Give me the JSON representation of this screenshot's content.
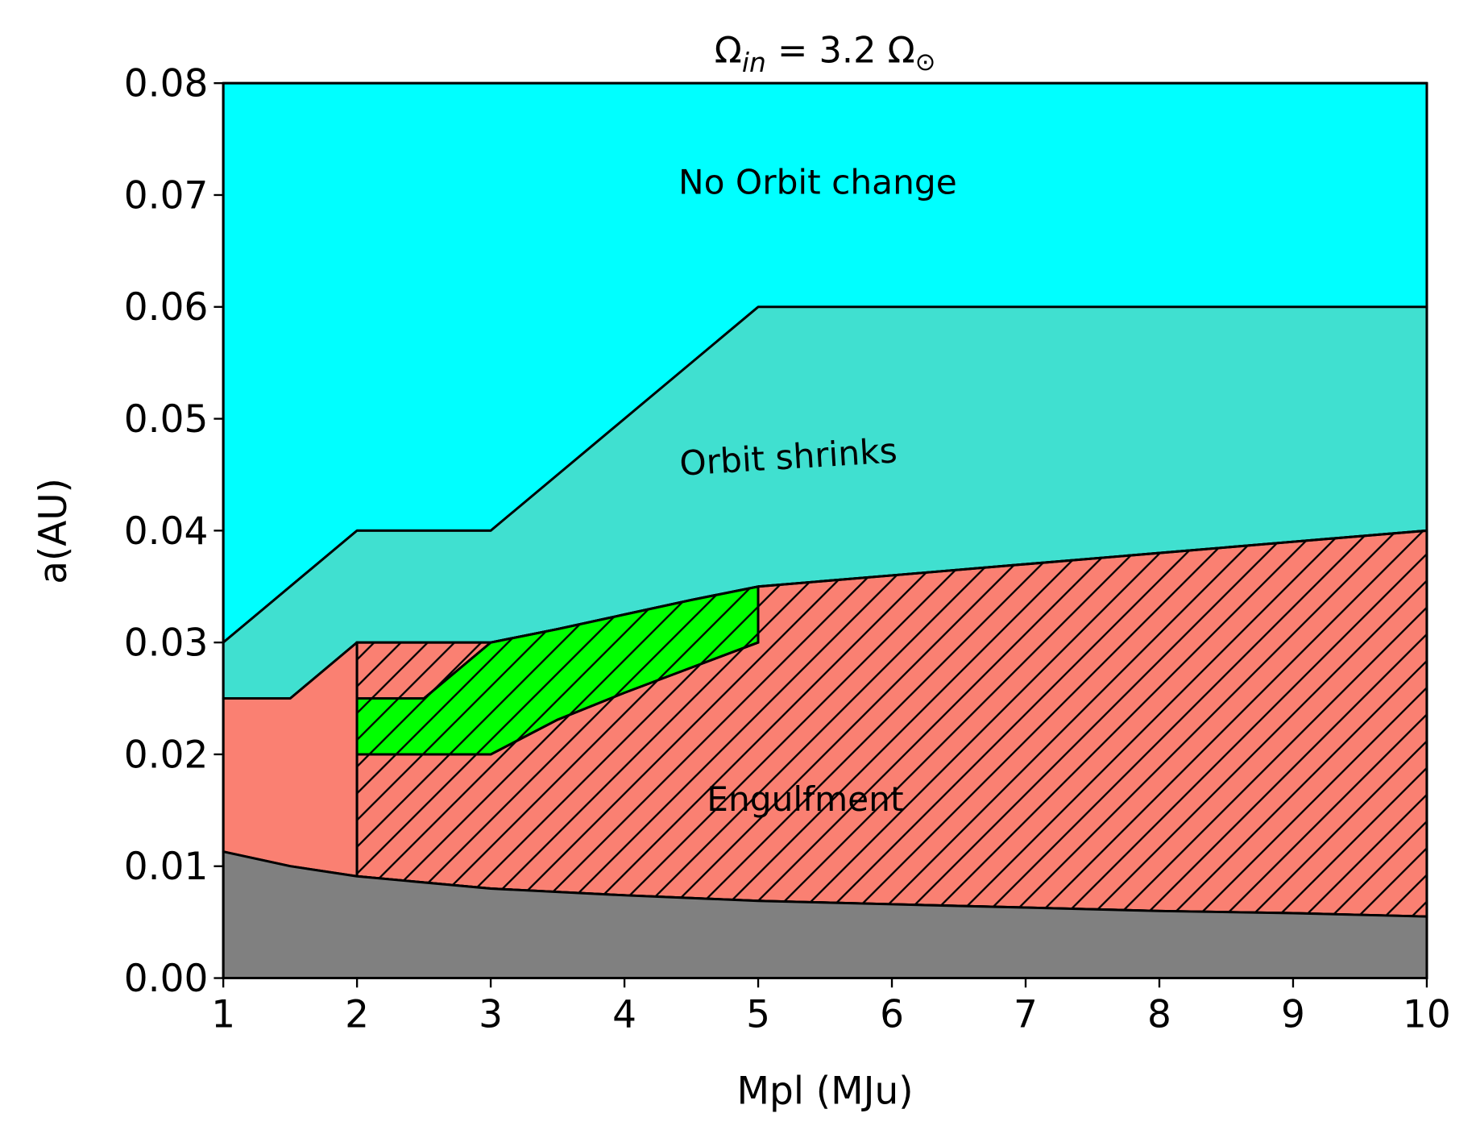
{
  "chart_data": {
    "type": "area",
    "title_main": "Ω",
    "title_sub": "in",
    "title_rest": " = 3.2 Ω",
    "title_sun": "⊙",
    "xlabel": "Mpl (MJu)",
    "ylabel": "a(AU)",
    "xlim": [
      1,
      10
    ],
    "ylim": [
      0,
      0.08
    ],
    "xticks": [
      "1",
      "2",
      "3",
      "4",
      "5",
      "6",
      "7",
      "8",
      "9",
      "10"
    ],
    "yticks": [
      "0.00",
      "0.01",
      "0.02",
      "0.03",
      "0.04",
      "0.05",
      "0.06",
      "0.07",
      "0.08"
    ],
    "grid": false,
    "colors": {
      "no_change": "#00ffff",
      "shrinks": "#40e0d0",
      "engulfment": "#fa8072",
      "green": "#00ff00",
      "grey": "#808080"
    },
    "labels": {
      "no_change": "No Orbit change",
      "shrinks": "Orbit shrinks",
      "engulfment": "Engulfment"
    },
    "regions": [
      {
        "id": "no-orbit-change",
        "color": "#00ffff",
        "hatch": false,
        "points": [
          [
            1,
            0.08
          ],
          [
            10,
            0.08
          ],
          [
            10,
            0.06
          ],
          [
            5,
            0.06
          ],
          [
            3,
            0.04
          ],
          [
            2,
            0.04
          ],
          [
            1,
            0.03
          ]
        ]
      },
      {
        "id": "orbit-shrinks",
        "color": "#40e0d0",
        "hatch": false,
        "points": [
          [
            1,
            0.03
          ],
          [
            2,
            0.04
          ],
          [
            3,
            0.04
          ],
          [
            5,
            0.06
          ],
          [
            10,
            0.06
          ],
          [
            10,
            0.04
          ],
          [
            9,
            0.039
          ],
          [
            8,
            0.038
          ],
          [
            7,
            0.037
          ],
          [
            6,
            0.036
          ],
          [
            5,
            0.035
          ],
          [
            4.5,
            0.0338
          ],
          [
            4,
            0.0325
          ],
          [
            3.5,
            0.0312
          ],
          [
            3,
            0.03
          ],
          [
            2,
            0.03
          ],
          [
            1.5,
            0.025
          ],
          [
            1,
            0.025
          ]
        ]
      },
      {
        "id": "engulfment-plain",
        "color": "#fa8072",
        "hatch": false,
        "points": [
          [
            1,
            0.025
          ],
          [
            1.5,
            0.025
          ],
          [
            2,
            0.03
          ],
          [
            2,
            0.0091
          ],
          [
            1.5,
            0.01
          ],
          [
            1,
            0.0113
          ]
        ]
      },
      {
        "id": "engulfment-hatched",
        "color": "#fa8072",
        "hatch": true,
        "points": [
          [
            2,
            0.03
          ],
          [
            3,
            0.03
          ],
          [
            3.5,
            0.0312
          ],
          [
            4,
            0.0325
          ],
          [
            4.5,
            0.0338
          ],
          [
            5,
            0.035
          ],
          [
            6,
            0.036
          ],
          [
            7,
            0.037
          ],
          [
            8,
            0.038
          ],
          [
            9,
            0.039
          ],
          [
            10,
            0.04
          ],
          [
            10,
            0.0055
          ],
          [
            9,
            0.0058
          ],
          [
            8,
            0.006
          ],
          [
            7,
            0.0063
          ],
          [
            6,
            0.0066
          ],
          [
            5,
            0.0069
          ],
          [
            4,
            0.0074
          ],
          [
            3,
            0.008
          ],
          [
            2,
            0.0091
          ]
        ]
      },
      {
        "id": "green-region",
        "color": "#00ff00",
        "hatch": true,
        "points": [
          [
            2,
            0.025
          ],
          [
            2.5,
            0.025
          ],
          [
            3,
            0.03
          ],
          [
            3.5,
            0.0312
          ],
          [
            4,
            0.0325
          ],
          [
            4.5,
            0.0338
          ],
          [
            5,
            0.035
          ],
          [
            5,
            0.03
          ],
          [
            4,
            0.0255
          ],
          [
            3.5,
            0.0231
          ],
          [
            3,
            0.02
          ],
          [
            2,
            0.02
          ]
        ]
      },
      {
        "id": "excluded-grey",
        "color": "#808080",
        "hatch": false,
        "points": [
          [
            1,
            0
          ],
          [
            10,
            0
          ],
          [
            10,
            0.0055
          ],
          [
            9,
            0.0058
          ],
          [
            8,
            0.006
          ],
          [
            7,
            0.0063
          ],
          [
            6,
            0.0066
          ],
          [
            5,
            0.0069
          ],
          [
            4,
            0.0074
          ],
          [
            3,
            0.008
          ],
          [
            2,
            0.0091
          ],
          [
            1.5,
            0.01
          ],
          [
            1,
            0.0113
          ]
        ]
      }
    ]
  }
}
